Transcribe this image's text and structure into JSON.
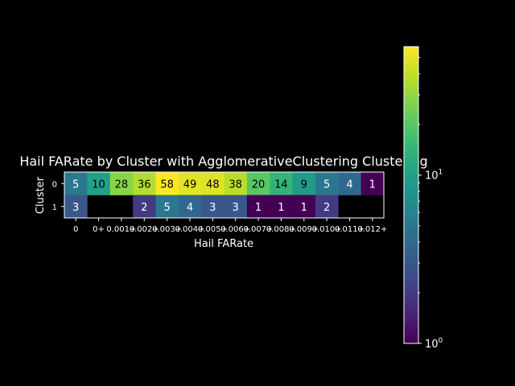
{
  "chart_data": {
    "type": "heatmap",
    "title": "Hail FARate by Cluster with AgglomerativeClustering Clustering",
    "xlabel": "Hail FARate",
    "ylabel": "Cluster",
    "x_categories": [
      "0",
      "0+",
      "0.001+",
      "0.002+",
      "0.003+",
      "0.004+",
      "0.005+",
      "0.006+",
      "0.007+",
      "0.008+",
      "0.009+",
      "0.010+",
      "0.011+",
      "0.012+"
    ],
    "y_categories": [
      "0",
      "1"
    ],
    "values": [
      [
        5,
        10,
        28,
        36,
        58,
        49,
        48,
        38,
        20,
        14,
        9,
        5,
        4,
        1
      ],
      [
        3,
        null,
        null,
        2,
        5,
        4,
        3,
        3,
        1,
        1,
        1,
        2,
        null,
        null
      ]
    ],
    "colorbar": {
      "scale": "log",
      "range": [
        1,
        58
      ],
      "colormap": "viridis",
      "tick_labels": [
        "10^0",
        "10^1"
      ]
    },
    "colors": {
      "background": "#000000",
      "text": "#ffffff",
      "missing": "#000000"
    }
  }
}
